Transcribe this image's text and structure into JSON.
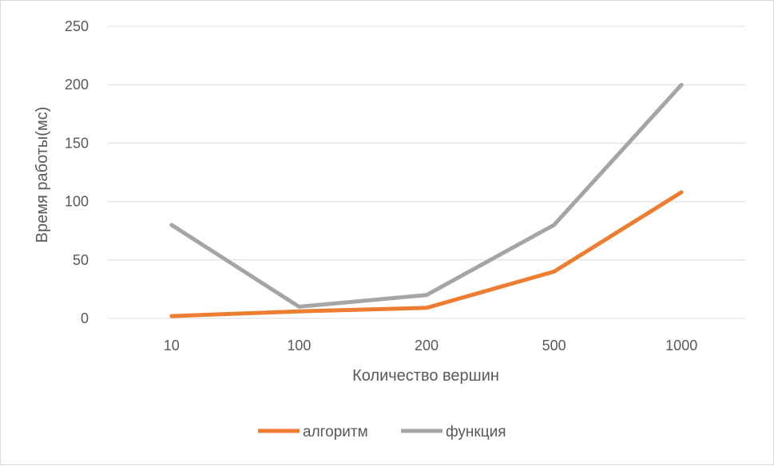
{
  "chart_data": {
    "type": "line",
    "categories": [
      "10",
      "100",
      "200",
      "500",
      "1000"
    ],
    "series": [
      {
        "name": "алгоритм",
        "values": [
          2,
          6,
          9,
          40,
          108
        ],
        "color": "#ed7d31"
      },
      {
        "name": "функция",
        "values": [
          80,
          10,
          20,
          80,
          200
        ],
        "color": "#a5a5a5"
      }
    ],
    "xlabel": "Количество вершин",
    "ylabel": "Время работы(мс)",
    "ylim": [
      0,
      250
    ],
    "yticks": [
      "0",
      "50",
      "100",
      "150",
      "200",
      "250"
    ],
    "grid": true,
    "legend_position": "bottom"
  }
}
